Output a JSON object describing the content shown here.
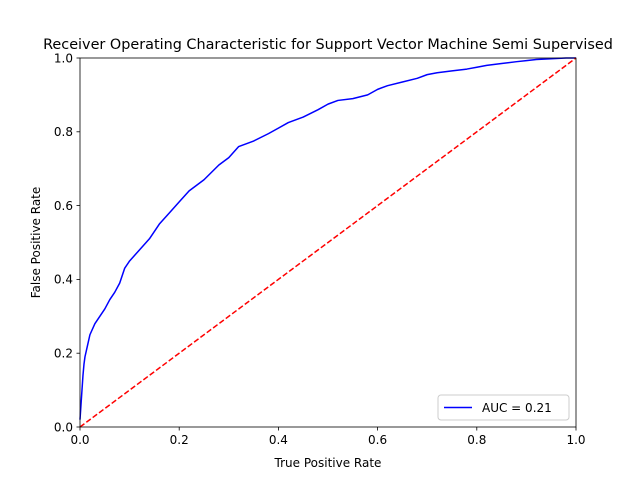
{
  "chart_data": {
    "type": "line",
    "title": "Receiver Operating Characteristic for Support Vector Machine Semi Supervised",
    "xlabel": "True Positive Rate",
    "ylabel": "False Positive Rate",
    "xlim": [
      0,
      1
    ],
    "ylim": [
      0,
      1
    ],
    "xticks": [
      "0.0",
      "0.2",
      "0.4",
      "0.6",
      "0.8",
      "1.0"
    ],
    "yticks": [
      "0.0",
      "0.2",
      "0.4",
      "0.6",
      "0.8",
      "1.0"
    ],
    "grid": false,
    "legend_position": "lower-right",
    "series": [
      {
        "name": "AUC = 0.21",
        "color": "#0000ff",
        "style": "solid",
        "x": [
          0.0,
          0.002,
          0.004,
          0.006,
          0.008,
          0.01,
          0.015,
          0.02,
          0.03,
          0.04,
          0.05,
          0.06,
          0.07,
          0.08,
          0.09,
          0.1,
          0.12,
          0.14,
          0.16,
          0.18,
          0.2,
          0.22,
          0.25,
          0.28,
          0.3,
          0.32,
          0.35,
          0.38,
          0.4,
          0.42,
          0.45,
          0.48,
          0.5,
          0.52,
          0.55,
          0.58,
          0.6,
          0.62,
          0.65,
          0.68,
          0.7,
          0.72,
          0.75,
          0.78,
          0.8,
          0.82,
          0.85,
          0.88,
          0.9,
          0.92,
          0.95,
          0.98,
          1.0
        ],
        "y": [
          0.02,
          0.06,
          0.1,
          0.14,
          0.17,
          0.19,
          0.22,
          0.25,
          0.28,
          0.3,
          0.32,
          0.345,
          0.365,
          0.39,
          0.43,
          0.45,
          0.48,
          0.51,
          0.55,
          0.58,
          0.61,
          0.64,
          0.67,
          0.71,
          0.73,
          0.76,
          0.775,
          0.795,
          0.81,
          0.825,
          0.84,
          0.86,
          0.875,
          0.885,
          0.89,
          0.9,
          0.915,
          0.925,
          0.935,
          0.945,
          0.955,
          0.96,
          0.965,
          0.97,
          0.975,
          0.98,
          0.985,
          0.99,
          0.993,
          0.996,
          0.998,
          1.0,
          1.0
        ]
      },
      {
        "name": "",
        "color": "#ff0000",
        "style": "dashed",
        "x": [
          0,
          1
        ],
        "y": [
          0,
          1
        ]
      }
    ]
  }
}
